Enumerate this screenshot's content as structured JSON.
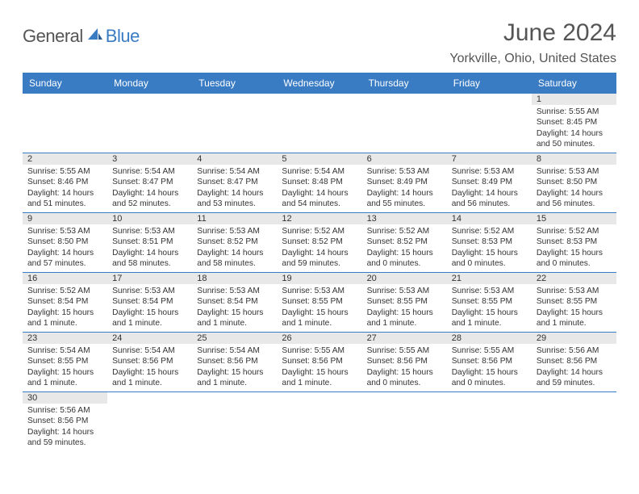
{
  "logo": {
    "general": "General",
    "blue": "Blue"
  },
  "title": "June 2024",
  "location": "Yorkville, Ohio, United States",
  "weekdays": [
    "Sunday",
    "Monday",
    "Tuesday",
    "Wednesday",
    "Thursday",
    "Friday",
    "Saturday"
  ],
  "colors": {
    "header_bg": "#3a7cc4",
    "header_text": "#ffffff",
    "daynum_bg": "#e8e8e8",
    "text": "#333333",
    "row_border": "#3a7cc4"
  },
  "weeks": [
    [
      null,
      null,
      null,
      null,
      null,
      null,
      {
        "n": "1",
        "sr": "Sunrise: 5:55 AM",
        "ss": "Sunset: 8:45 PM",
        "d1": "Daylight: 14 hours",
        "d2": "and 50 minutes."
      }
    ],
    [
      {
        "n": "2",
        "sr": "Sunrise: 5:55 AM",
        "ss": "Sunset: 8:46 PM",
        "d1": "Daylight: 14 hours",
        "d2": "and 51 minutes."
      },
      {
        "n": "3",
        "sr": "Sunrise: 5:54 AM",
        "ss": "Sunset: 8:47 PM",
        "d1": "Daylight: 14 hours",
        "d2": "and 52 minutes."
      },
      {
        "n": "4",
        "sr": "Sunrise: 5:54 AM",
        "ss": "Sunset: 8:47 PM",
        "d1": "Daylight: 14 hours",
        "d2": "and 53 minutes."
      },
      {
        "n": "5",
        "sr": "Sunrise: 5:54 AM",
        "ss": "Sunset: 8:48 PM",
        "d1": "Daylight: 14 hours",
        "d2": "and 54 minutes."
      },
      {
        "n": "6",
        "sr": "Sunrise: 5:53 AM",
        "ss": "Sunset: 8:49 PM",
        "d1": "Daylight: 14 hours",
        "d2": "and 55 minutes."
      },
      {
        "n": "7",
        "sr": "Sunrise: 5:53 AM",
        "ss": "Sunset: 8:49 PM",
        "d1": "Daylight: 14 hours",
        "d2": "and 56 minutes."
      },
      {
        "n": "8",
        "sr": "Sunrise: 5:53 AM",
        "ss": "Sunset: 8:50 PM",
        "d1": "Daylight: 14 hours",
        "d2": "and 56 minutes."
      }
    ],
    [
      {
        "n": "9",
        "sr": "Sunrise: 5:53 AM",
        "ss": "Sunset: 8:50 PM",
        "d1": "Daylight: 14 hours",
        "d2": "and 57 minutes."
      },
      {
        "n": "10",
        "sr": "Sunrise: 5:53 AM",
        "ss": "Sunset: 8:51 PM",
        "d1": "Daylight: 14 hours",
        "d2": "and 58 minutes."
      },
      {
        "n": "11",
        "sr": "Sunrise: 5:53 AM",
        "ss": "Sunset: 8:52 PM",
        "d1": "Daylight: 14 hours",
        "d2": "and 58 minutes."
      },
      {
        "n": "12",
        "sr": "Sunrise: 5:52 AM",
        "ss": "Sunset: 8:52 PM",
        "d1": "Daylight: 14 hours",
        "d2": "and 59 minutes."
      },
      {
        "n": "13",
        "sr": "Sunrise: 5:52 AM",
        "ss": "Sunset: 8:52 PM",
        "d1": "Daylight: 15 hours",
        "d2": "and 0 minutes."
      },
      {
        "n": "14",
        "sr": "Sunrise: 5:52 AM",
        "ss": "Sunset: 8:53 PM",
        "d1": "Daylight: 15 hours",
        "d2": "and 0 minutes."
      },
      {
        "n": "15",
        "sr": "Sunrise: 5:52 AM",
        "ss": "Sunset: 8:53 PM",
        "d1": "Daylight: 15 hours",
        "d2": "and 0 minutes."
      }
    ],
    [
      {
        "n": "16",
        "sr": "Sunrise: 5:52 AM",
        "ss": "Sunset: 8:54 PM",
        "d1": "Daylight: 15 hours",
        "d2": "and 1 minute."
      },
      {
        "n": "17",
        "sr": "Sunrise: 5:53 AM",
        "ss": "Sunset: 8:54 PM",
        "d1": "Daylight: 15 hours",
        "d2": "and 1 minute."
      },
      {
        "n": "18",
        "sr": "Sunrise: 5:53 AM",
        "ss": "Sunset: 8:54 PM",
        "d1": "Daylight: 15 hours",
        "d2": "and 1 minute."
      },
      {
        "n": "19",
        "sr": "Sunrise: 5:53 AM",
        "ss": "Sunset: 8:55 PM",
        "d1": "Daylight: 15 hours",
        "d2": "and 1 minute."
      },
      {
        "n": "20",
        "sr": "Sunrise: 5:53 AM",
        "ss": "Sunset: 8:55 PM",
        "d1": "Daylight: 15 hours",
        "d2": "and 1 minute."
      },
      {
        "n": "21",
        "sr": "Sunrise: 5:53 AM",
        "ss": "Sunset: 8:55 PM",
        "d1": "Daylight: 15 hours",
        "d2": "and 1 minute."
      },
      {
        "n": "22",
        "sr": "Sunrise: 5:53 AM",
        "ss": "Sunset: 8:55 PM",
        "d1": "Daylight: 15 hours",
        "d2": "and 1 minute."
      }
    ],
    [
      {
        "n": "23",
        "sr": "Sunrise: 5:54 AM",
        "ss": "Sunset: 8:55 PM",
        "d1": "Daylight: 15 hours",
        "d2": "and 1 minute."
      },
      {
        "n": "24",
        "sr": "Sunrise: 5:54 AM",
        "ss": "Sunset: 8:56 PM",
        "d1": "Daylight: 15 hours",
        "d2": "and 1 minute."
      },
      {
        "n": "25",
        "sr": "Sunrise: 5:54 AM",
        "ss": "Sunset: 8:56 PM",
        "d1": "Daylight: 15 hours",
        "d2": "and 1 minute."
      },
      {
        "n": "26",
        "sr": "Sunrise: 5:55 AM",
        "ss": "Sunset: 8:56 PM",
        "d1": "Daylight: 15 hours",
        "d2": "and 1 minute."
      },
      {
        "n": "27",
        "sr": "Sunrise: 5:55 AM",
        "ss": "Sunset: 8:56 PM",
        "d1": "Daylight: 15 hours",
        "d2": "and 0 minutes."
      },
      {
        "n": "28",
        "sr": "Sunrise: 5:55 AM",
        "ss": "Sunset: 8:56 PM",
        "d1": "Daylight: 15 hours",
        "d2": "and 0 minutes."
      },
      {
        "n": "29",
        "sr": "Sunrise: 5:56 AM",
        "ss": "Sunset: 8:56 PM",
        "d1": "Daylight: 14 hours",
        "d2": "and 59 minutes."
      }
    ],
    [
      {
        "n": "30",
        "sr": "Sunrise: 5:56 AM",
        "ss": "Sunset: 8:56 PM",
        "d1": "Daylight: 14 hours",
        "d2": "and 59 minutes."
      },
      null,
      null,
      null,
      null,
      null,
      null
    ]
  ]
}
